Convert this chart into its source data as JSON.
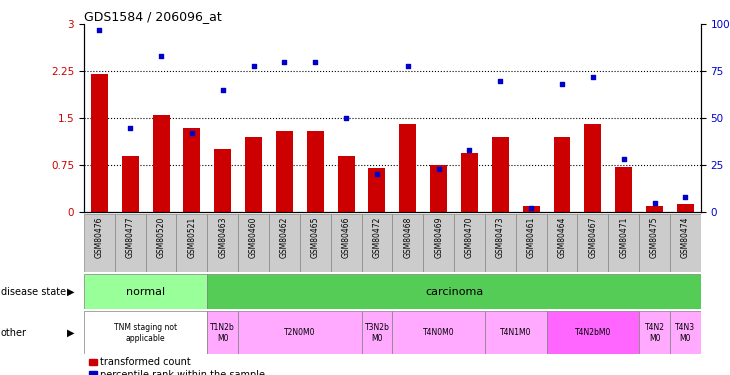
{
  "title": "GDS1584 / 206096_at",
  "samples": [
    "GSM80476",
    "GSM80477",
    "GSM80520",
    "GSM80521",
    "GSM80463",
    "GSM80460",
    "GSM80462",
    "GSM80465",
    "GSM80466",
    "GSM80472",
    "GSM80468",
    "GSM80469",
    "GSM80470",
    "GSM80473",
    "GSM80461",
    "GSM80464",
    "GSM80467",
    "GSM80471",
    "GSM80475",
    "GSM80474"
  ],
  "transformed_count": [
    2.2,
    0.9,
    1.55,
    1.35,
    1.0,
    1.2,
    1.3,
    1.3,
    0.9,
    0.7,
    1.4,
    0.75,
    0.95,
    1.2,
    0.1,
    1.2,
    1.4,
    0.72,
    0.1,
    0.12
  ],
  "percentile_rank": [
    97,
    45,
    83,
    42,
    65,
    78,
    80,
    80,
    50,
    20,
    78,
    23,
    33,
    70,
    2,
    68,
    72,
    28,
    5,
    8
  ],
  "ylim_left": [
    0,
    3
  ],
  "ylim_right": [
    0,
    100
  ],
  "yticks_left": [
    0,
    0.75,
    1.5,
    2.25,
    3
  ],
  "yticks_right": [
    0,
    25,
    50,
    75,
    100
  ],
  "ytick_labels_left": [
    "0",
    "0.75",
    "1.5",
    "2.25",
    "3"
  ],
  "ytick_labels_right": [
    "0",
    "25",
    "50",
    "75",
    "100%"
  ],
  "bar_color": "#cc0000",
  "scatter_color": "#0000cc",
  "dotted_line_values": [
    0.75,
    1.5,
    2.25
  ],
  "disease_state_colors": {
    "normal": "#99ff99",
    "carcinoma": "#55cc55"
  },
  "other_groups": [
    {
      "label": "TNM staging not\napplicable",
      "start": 0,
      "end": 4,
      "color": "#ffffff"
    },
    {
      "label": "T1N2b\nM0",
      "start": 4,
      "end": 5,
      "color": "#ffaaff"
    },
    {
      "label": "T2N0M0",
      "start": 5,
      "end": 9,
      "color": "#ffaaff"
    },
    {
      "label": "T3N2b\nM0",
      "start": 9,
      "end": 10,
      "color": "#ffaaff"
    },
    {
      "label": "T4N0M0",
      "start": 10,
      "end": 13,
      "color": "#ffaaff"
    },
    {
      "label": "T4N1M0",
      "start": 13,
      "end": 15,
      "color": "#ffaaff"
    },
    {
      "label": "T4N2bM0",
      "start": 15,
      "end": 18,
      "color": "#ff66ff"
    },
    {
      "label": "T4N2\nM0",
      "start": 18,
      "end": 19,
      "color": "#ffaaff"
    },
    {
      "label": "T4N3\nM0",
      "start": 19,
      "end": 20,
      "color": "#ffaaff"
    }
  ],
  "bar_width": 0.55,
  "background_color": "#ffffff",
  "tick_label_color_left": "#cc0000",
  "tick_label_color_right": "#0000cc",
  "xtick_bg_color": "#cccccc",
  "xtick_border_color": "#888888"
}
